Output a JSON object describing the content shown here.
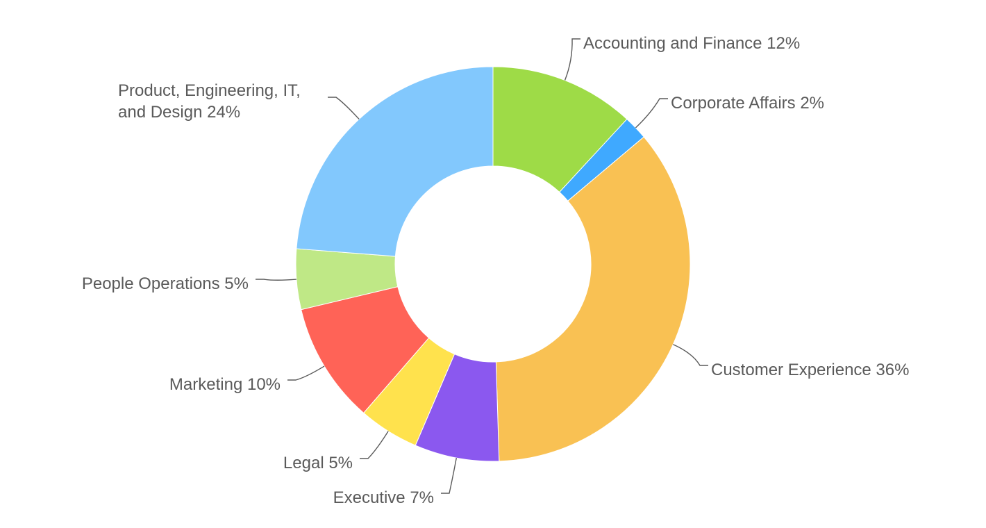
{
  "chart_data": {
    "type": "pie",
    "title": "",
    "donut": true,
    "legend": "none",
    "label_format": "{name} {percent}%",
    "slices": [
      {
        "name": "Accounting and Finance",
        "value": 12,
        "color": "#9edb47",
        "label_lines": [
          "Accounting and Finance 12%"
        ]
      },
      {
        "name": "Corporate Affairs",
        "value": 2,
        "color": "#3fa9ff",
        "label_lines": [
          "Corporate Affairs 2%"
        ]
      },
      {
        "name": "Customer Experience",
        "value": 36,
        "color": "#f9c153",
        "label_lines": [
          "Customer Experience 36%"
        ]
      },
      {
        "name": "Executive",
        "value": 7,
        "color": "#8b58ef",
        "label_lines": [
          "Executive 7%"
        ]
      },
      {
        "name": "Legal",
        "value": 5,
        "color": "#ffe24d",
        "label_lines": [
          "Legal 5%"
        ]
      },
      {
        "name": "Marketing",
        "value": 10,
        "color": "#ff6357",
        "label_lines": [
          "Marketing 10%"
        ]
      },
      {
        "name": "People Operations",
        "value": 5,
        "color": "#bfe886",
        "label_lines": [
          "People Operations 5%"
        ]
      },
      {
        "name": "Product, Engineering, IT, and Design",
        "value": 24,
        "color": "#82c8fd",
        "label_lines": [
          "Product, Engineering, IT,",
          "and Design 24%"
        ]
      }
    ]
  }
}
